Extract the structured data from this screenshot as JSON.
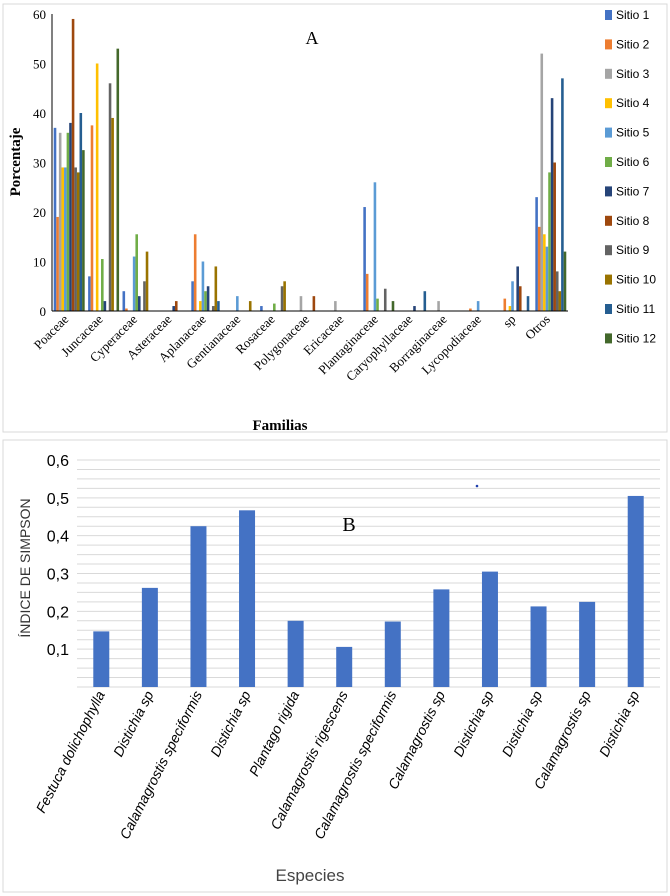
{
  "chart_data": [
    {
      "type": "bar",
      "panel_label": "A",
      "xlabel": "Familias",
      "ylabel": "Porcentaje",
      "ylim": [
        0,
        60
      ],
      "yticks": [
        "0",
        "10",
        "20",
        "30",
        "40",
        "50",
        "60"
      ],
      "ytick_values": [
        0,
        10,
        20,
        30,
        40,
        50,
        60
      ],
      "grid": false,
      "legend_position": "right",
      "categories": [
        "Poaceae",
        "Juncaceae",
        "Cyperaceae",
        "Asteraceae",
        "Aplanaceae",
        "Gentianaceae",
        "Rosaceae",
        "Polygonaceae",
        "Ericaceae",
        "Plantaginaceae",
        "Caryophyllaceae",
        "Borraginaceae",
        "Lycopodiaceae",
        "sp",
        "Otros"
      ],
      "series": [
        {
          "name": "Sitio 1",
          "color": "#4472C4",
          "values": [
            37,
            7,
            4,
            0,
            6,
            0,
            1,
            0,
            0,
            21,
            0,
            0,
            0,
            0,
            23
          ]
        },
        {
          "name": "Sitio 2",
          "color": "#ED7D31",
          "values": [
            19,
            37.5,
            0.5,
            0,
            15.5,
            0,
            0,
            0,
            0,
            7.5,
            0,
            0,
            0.5,
            2.5,
            17
          ]
        },
        {
          "name": "Sitio 3",
          "color": "#A5A5A5",
          "values": [
            36,
            0,
            0,
            0,
            0,
            0,
            0,
            3,
            2,
            0,
            0,
            2,
            0,
            0,
            52
          ]
        },
        {
          "name": "Sitio 4",
          "color": "#FFC000",
          "values": [
            29,
            50,
            0,
            0,
            2,
            0,
            0,
            0,
            0,
            0,
            0,
            0,
            0,
            1,
            15.5
          ]
        },
        {
          "name": "Sitio 5",
          "color": "#5B9BD5",
          "values": [
            29,
            0,
            11,
            0,
            10,
            3,
            0,
            0,
            0,
            26,
            0,
            0,
            2,
            6,
            13
          ]
        },
        {
          "name": "Sitio 6",
          "color": "#70AD47",
          "values": [
            36,
            10.5,
            15.5,
            0,
            4,
            0,
            1.5,
            0,
            0,
            2.5,
            0,
            0,
            0,
            0,
            28
          ]
        },
        {
          "name": "Sitio 7",
          "color": "#264478",
          "values": [
            38,
            2,
            3,
            1,
            5,
            0,
            0,
            0,
            0,
            0,
            1,
            0,
            0,
            9,
            43
          ]
        },
        {
          "name": "Sitio 8",
          "color": "#9E480E",
          "values": [
            59,
            0,
            0,
            2,
            0,
            0,
            0,
            3,
            0,
            0,
            0,
            0,
            0,
            5,
            30
          ]
        },
        {
          "name": "Sitio 9",
          "color": "#636363",
          "values": [
            29,
            46,
            6,
            0,
            1,
            0,
            5,
            0,
            0,
            4.5,
            0,
            0,
            0,
            0,
            8
          ]
        },
        {
          "name": "Sitio 10",
          "color": "#997300",
          "values": [
            28,
            39,
            12,
            0,
            9,
            2,
            6,
            0,
            0,
            0,
            0,
            0,
            0,
            0,
            4
          ]
        },
        {
          "name": "Sitio 11",
          "color": "#255E91",
          "values": [
            40,
            0,
            0,
            0,
            2,
            0,
            0,
            0,
            0,
            0,
            4,
            0,
            0,
            3,
            47
          ]
        },
        {
          "name": "Sitio 12",
          "color": "#43682B",
          "values": [
            32.5,
            53,
            0,
            0,
            0,
            0,
            0,
            0,
            0,
            2,
            0,
            0,
            0,
            0,
            12
          ]
        }
      ]
    },
    {
      "type": "bar",
      "panel_label": "B",
      "xlabel": "Especies",
      "ylabel": "ÍNDICE DE SIMPSON",
      "ylim": [
        0.0,
        0.6
      ],
      "yticks": [
        "0,1",
        "0,2",
        "0,3",
        "0,4",
        "0,5",
        "0,6"
      ],
      "ytick_values": [
        0.1,
        0.2,
        0.3,
        0.4,
        0.5,
        0.6
      ],
      "grid": true,
      "bar_color": "#4472C4",
      "categories": [
        "Festuca dolichophylla",
        "Distichia sp",
        "Calamagrostis speciformis",
        "Distichia sp",
        "Plantago rigida",
        "Calamagrostis rigescens",
        "Calamagrostis speciformis",
        "Calamagrostis sp",
        "Distichia sp",
        "Distichia sp",
        "Calamagrostis sp",
        "Distichia sp"
      ],
      "values": [
        0.147,
        0.262,
        0.425,
        0.467,
        0.175,
        0.106,
        0.173,
        0.258,
        0.305,
        0.213,
        0.225,
        0.505
      ]
    }
  ]
}
